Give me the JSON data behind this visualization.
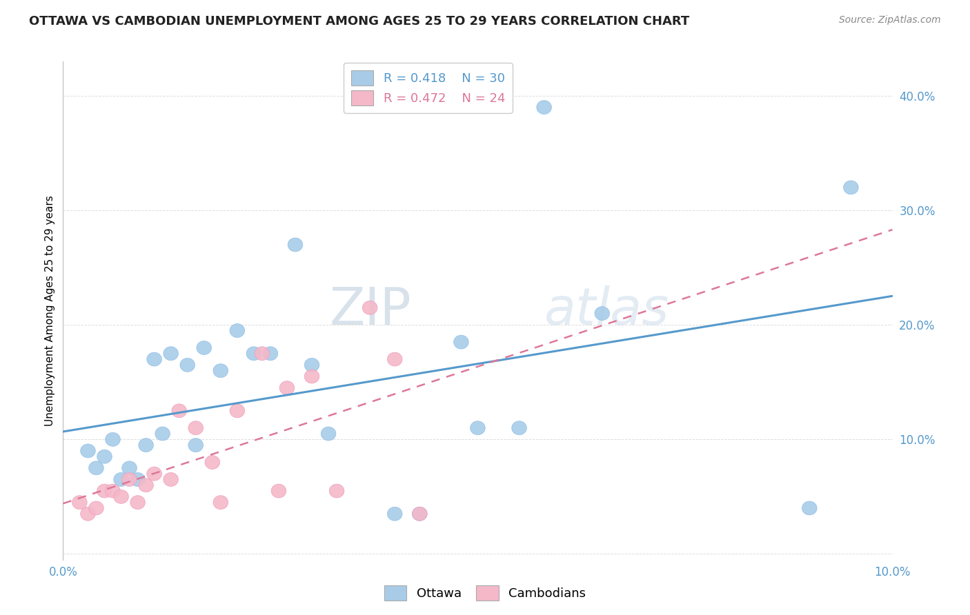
{
  "title": "OTTAWA VS CAMBODIAN UNEMPLOYMENT AMONG AGES 25 TO 29 YEARS CORRELATION CHART",
  "source": "Source: ZipAtlas.com",
  "ylabel": "Unemployment Among Ages 25 to 29 years",
  "xlim": [
    0.0,
    0.1
  ],
  "ylim": [
    -0.005,
    0.43
  ],
  "watermark_line1": "ZIP",
  "watermark_line2": "atlas",
  "ottawa_R": 0.418,
  "ottawa_N": 30,
  "cambodian_R": 0.472,
  "cambodian_N": 24,
  "ottawa_color": "#A8CCE8",
  "cambodian_color": "#F4B8C8",
  "line_ottawa_color": "#5599CC",
  "line_cambodian_color": "#DD7799",
  "ottawa_x": [
    0.003,
    0.004,
    0.005,
    0.006,
    0.007,
    0.008,
    0.009,
    0.01,
    0.011,
    0.012,
    0.013,
    0.015,
    0.016,
    0.017,
    0.019,
    0.021,
    0.023,
    0.025,
    0.028,
    0.03,
    0.032,
    0.04,
    0.043,
    0.048,
    0.05,
    0.055,
    0.058,
    0.065,
    0.09,
    0.095
  ],
  "ottawa_y": [
    0.09,
    0.075,
    0.085,
    0.1,
    0.065,
    0.075,
    0.065,
    0.095,
    0.17,
    0.105,
    0.175,
    0.165,
    0.095,
    0.18,
    0.16,
    0.195,
    0.175,
    0.175,
    0.27,
    0.165,
    0.105,
    0.035,
    0.035,
    0.185,
    0.11,
    0.11,
    0.39,
    0.21,
    0.04,
    0.32
  ],
  "cambodian_x": [
    0.002,
    0.003,
    0.004,
    0.005,
    0.006,
    0.007,
    0.008,
    0.009,
    0.01,
    0.011,
    0.013,
    0.014,
    0.016,
    0.018,
    0.019,
    0.021,
    0.024,
    0.026,
    0.027,
    0.03,
    0.033,
    0.037,
    0.04,
    0.043
  ],
  "cambodian_y": [
    0.045,
    0.035,
    0.04,
    0.055,
    0.055,
    0.05,
    0.065,
    0.045,
    0.06,
    0.07,
    0.065,
    0.125,
    0.11,
    0.08,
    0.045,
    0.125,
    0.175,
    0.055,
    0.145,
    0.155,
    0.055,
    0.215,
    0.17,
    0.035
  ],
  "background_color": "#FFFFFF",
  "grid_color": "#DDDDDD"
}
